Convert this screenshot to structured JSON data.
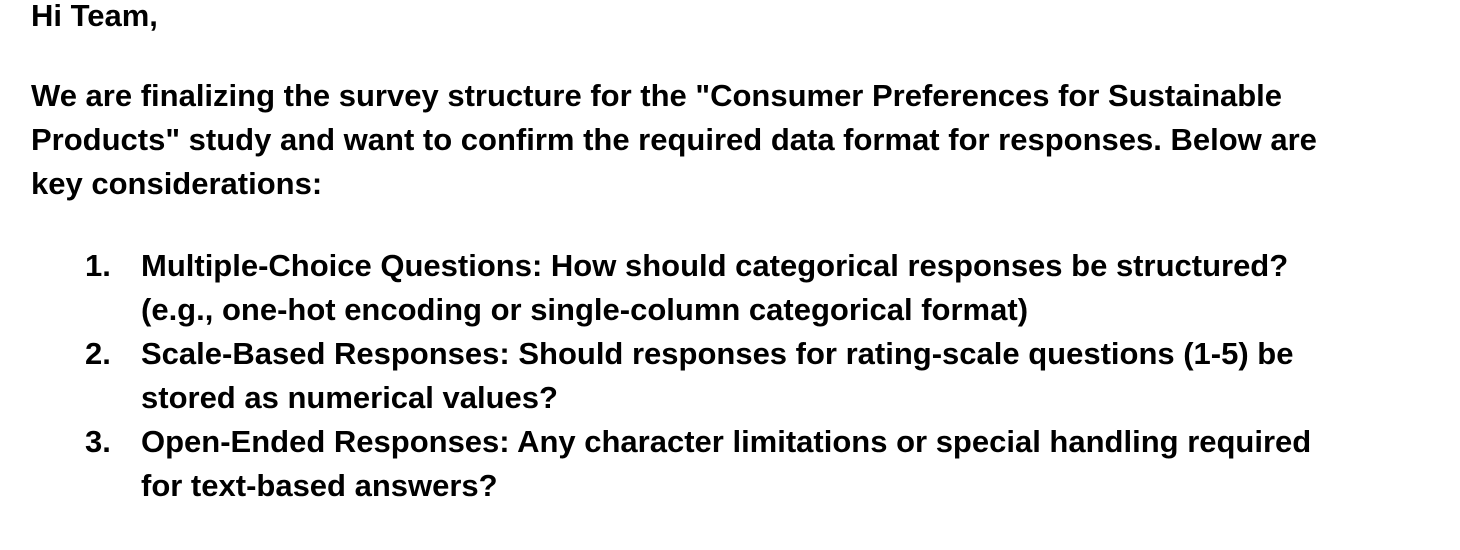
{
  "email": {
    "greeting": "Hi Team,",
    "intro_lines": [
      "We are finalizing the survey structure for the \"Consumer Preferences for Sustainable",
      "Products\" study and want to confirm the required data format for responses. Below are",
      "key considerations:"
    ],
    "considerations": [
      {
        "number": "1.",
        "lines": [
          "Multiple-Choice Questions: How should categorical responses be structured?",
          "(e.g., one-hot encoding or single-column categorical format)"
        ]
      },
      {
        "number": "2.",
        "lines": [
          "Scale-Based Responses: Should responses for rating-scale questions (1-5) be",
          "stored as numerical values?"
        ]
      },
      {
        "number": "3.",
        "lines": [
          "Open-Ended Responses: Any character limitations or special handling required",
          "for text-based answers?"
        ]
      }
    ]
  }
}
